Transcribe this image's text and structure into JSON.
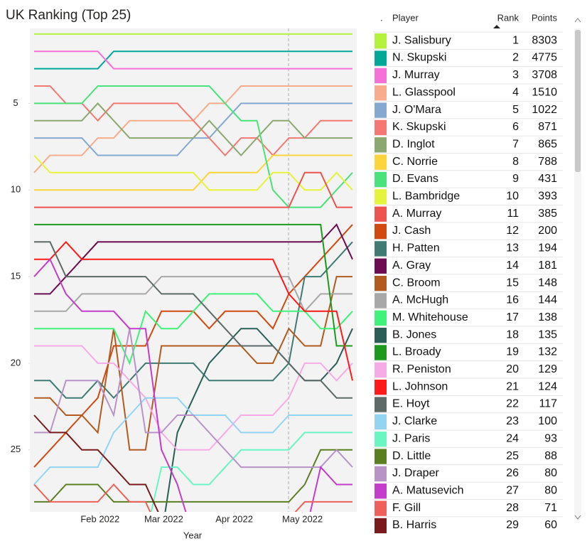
{
  "chart_data": {
    "type": "line",
    "title": "UK Ranking (Top 25)",
    "x_label": "Year",
    "x": [
      "2022-01-03",
      "2022-01-10",
      "2022-01-17",
      "2022-01-24",
      "2022-01-31",
      "2022-02-07",
      "2022-02-14",
      "2022-02-21",
      "2022-02-28",
      "2022-03-07",
      "2022-03-14",
      "2022-03-21",
      "2022-03-28",
      "2022-04-04",
      "2022-04-11",
      "2022-04-18",
      "2022-04-25",
      "2022-05-02",
      "2022-05-09",
      "2022-05-16",
      "2022-05-23"
    ],
    "xlim": [
      "2022-01-03",
      "2022-05-23"
    ],
    "xticks": [
      {
        "value": "2022-02-01",
        "label": "Feb 2022"
      },
      {
        "value": "2022-03-01",
        "label": "Mar 2022"
      },
      {
        "value": "2022-04-01",
        "label": "Apr 2022"
      },
      {
        "value": "2022-05-01",
        "label": "May 2022"
      }
    ],
    "ylim": [
      0.8,
      28.6
    ],
    "y_inverted": true,
    "yticks": [
      5,
      10,
      15,
      20,
      25
    ],
    "series": [
      {
        "name": "J. Salisbury",
        "color": "#b5f23c",
        "values": [
          1,
          1,
          1,
          1,
          1,
          1,
          1,
          1,
          1,
          1,
          1,
          1,
          1,
          1,
          1,
          1,
          1,
          1,
          1,
          1,
          1
        ]
      },
      {
        "name": "N. Skupski",
        "color": "#01a89a",
        "values": [
          3,
          3,
          3,
          3,
          3,
          2,
          2,
          2,
          2,
          2,
          2,
          2,
          2,
          2,
          2,
          2,
          2,
          2,
          2,
          2,
          2
        ]
      },
      {
        "name": "J. Murray",
        "color": "#f570d8",
        "values": [
          2,
          2,
          2,
          2,
          2,
          3,
          3,
          3,
          3,
          3,
          3,
          3,
          3,
          3,
          3,
          3,
          3,
          3,
          3,
          3,
          3
        ]
      },
      {
        "name": "L. Glasspool",
        "color": "#f8ac8c",
        "values": [
          9,
          8,
          8,
          8,
          7,
          7,
          6,
          6,
          6,
          6,
          6,
          5,
          5,
          4,
          4,
          4,
          4,
          4,
          4,
          4,
          4
        ]
      },
      {
        "name": "J. O'Mara",
        "color": "#85a8d0",
        "values": [
          7,
          7,
          7,
          7,
          8,
          8,
          8,
          8,
          8,
          8,
          7,
          7,
          6,
          5,
          5,
          5,
          5,
          5,
          5,
          5,
          5
        ]
      },
      {
        "name": "K. Skupski",
        "color": "#f57873",
        "values": [
          4,
          4,
          5,
          5,
          6,
          5,
          5,
          5,
          5,
          5,
          6,
          7,
          8,
          7,
          7,
          8,
          7,
          7,
          6,
          6,
          6
        ]
      },
      {
        "name": "D. Inglot",
        "color": "#8ca870",
        "values": [
          6,
          6,
          6,
          6,
          5,
          6,
          7,
          7,
          7,
          7,
          7,
          6,
          7,
          8,
          7,
          6,
          6,
          7,
          7,
          7,
          7
        ]
      },
      {
        "name": "C. Norrie",
        "color": "#fdd43b",
        "values": [
          10,
          10,
          10,
          10,
          10,
          10,
          10,
          10,
          10,
          10,
          10,
          9,
          9,
          9,
          9,
          8,
          8,
          8,
          8,
          8,
          8
        ]
      },
      {
        "name": "D. Evans",
        "color": "#4ae27b",
        "values": [
          5,
          5,
          5,
          5,
          4,
          4,
          4,
          4,
          4,
          4,
          4,
          4,
          5,
          6,
          6,
          10,
          11,
          11,
          11,
          10,
          9
        ]
      },
      {
        "name": "L. Bambridge",
        "color": "#e6f33c",
        "values": [
          8,
          9,
          9,
          9,
          9,
          9,
          9,
          9,
          9,
          9,
          9,
          10,
          10,
          10,
          10,
          9,
          9,
          10,
          10,
          9,
          10
        ]
      },
      {
        "name": "A. Murray",
        "color": "#ef5350",
        "values": [
          11,
          11,
          11,
          11,
          11,
          11,
          11,
          11,
          11,
          11,
          11,
          11,
          11,
          11,
          11,
          11,
          11,
          9,
          9,
          11,
          11
        ]
      },
      {
        "name": "J. Cash",
        "color": "#d24a12",
        "values": [
          26,
          25,
          24,
          23,
          22,
          19,
          19,
          19,
          17,
          17,
          17,
          18,
          17,
          17,
          17,
          18,
          16,
          15,
          14,
          13,
          12
        ]
      },
      {
        "name": "H. Patten",
        "color": "#3f7b73",
        "values": [
          21,
          21,
          22,
          22,
          21,
          22,
          21,
          20,
          20,
          20,
          20,
          21,
          21,
          21,
          21,
          21,
          20,
          15,
          15,
          14,
          13
        ]
      },
      {
        "name": "A. Gray",
        "color": "#6e0c52",
        "values": [
          16,
          16,
          15,
          14,
          13,
          13,
          13,
          13,
          13,
          13,
          13,
          13,
          13,
          13,
          13,
          13,
          13,
          13,
          13,
          12,
          14
        ]
      },
      {
        "name": "C. Broom",
        "color": "#b35a1f",
        "values": [
          22,
          22,
          23,
          23,
          24,
          18,
          25,
          25,
          19,
          19,
          19,
          19,
          19,
          19,
          20,
          20,
          18,
          19,
          19,
          15,
          15
        ]
      },
      {
        "name": "A. McHugh",
        "color": "#a8a8a8",
        "values": [
          17,
          17,
          17,
          16,
          16,
          16,
          16,
          16,
          15,
          15,
          15,
          15,
          15,
          15,
          15,
          15,
          15,
          17,
          16,
          16,
          16
        ]
      },
      {
        "name": "M. Whitehouse",
        "color": "#3ff27a",
        "values": [
          18,
          18,
          18,
          18,
          18,
          18,
          20,
          17,
          18,
          18,
          17,
          16,
          16,
          16,
          16,
          17,
          17,
          17,
          18,
          18,
          17
        ]
      },
      {
        "name": "B. Jones",
        "color": "#2a5e57",
        "values": [
          30,
          30,
          30,
          30,
          30,
          30,
          30,
          30,
          30,
          24,
          22,
          20,
          19,
          18,
          18,
          19,
          20,
          21,
          21,
          20,
          18
        ]
      },
      {
        "name": "L. Broady",
        "color": "#1d9a1d",
        "values": [
          12,
          12,
          12,
          12,
          12,
          12,
          12,
          12,
          12,
          12,
          12,
          12,
          12,
          12,
          12,
          12,
          12,
          12,
          12,
          19,
          19
        ]
      },
      {
        "name": "R. Peniston",
        "color": "#f7abe6",
        "values": [
          19,
          19,
          19,
          19,
          20,
          20,
          21,
          22,
          24,
          25,
          25,
          25,
          24,
          23,
          23,
          23,
          22,
          20,
          20,
          21,
          20
        ]
      },
      {
        "name": "L. Johnson",
        "color": "#ff1a1a",
        "values": [
          14,
          14,
          13,
          14,
          14,
          14,
          14,
          14,
          14,
          14,
          14,
          14,
          14,
          14,
          14,
          14,
          16,
          17,
          17,
          17,
          21
        ]
      },
      {
        "name": "E. Hoyt",
        "color": "#5e6a68",
        "values": [
          13,
          13,
          15,
          15,
          15,
          15,
          15,
          15,
          16,
          16,
          16,
          17,
          18,
          19,
          19,
          19,
          20,
          21,
          21,
          22,
          22
        ]
      },
      {
        "name": "J. Clarke",
        "color": "#94d4f3",
        "values": [
          27,
          26,
          26,
          26,
          26,
          24,
          23,
          22,
          22,
          22,
          23,
          23,
          23,
          24,
          24,
          24,
          23,
          23,
          23,
          23,
          23
        ]
      },
      {
        "name": "J. Paris",
        "color": "#6af5c2",
        "values": [
          30,
          30,
          30,
          30,
          30,
          30,
          30,
          30,
          26,
          26,
          27,
          27,
          26,
          25,
          25,
          25,
          25,
          24,
          24,
          24,
          24
        ]
      },
      {
        "name": "D. Little",
        "color": "#5a7f20",
        "values": [
          28,
          28,
          27,
          27,
          27,
          28,
          28,
          28,
          28,
          28,
          28,
          28,
          28,
          28,
          28,
          28,
          28,
          27,
          25,
          25,
          25
        ]
      },
      {
        "name": "J. Draper",
        "color": "#b893c8",
        "values": [
          24,
          24,
          21,
          21,
          21,
          23,
          18,
          24,
          24,
          23,
          23,
          24,
          25,
          26,
          26,
          26,
          26,
          26,
          26,
          25,
          26
        ]
      },
      {
        "name": "A. Matusevich",
        "color": "#c43ccc",
        "values": [
          15,
          14,
          16,
          17,
          17,
          17,
          18,
          18,
          25,
          27,
          30,
          30,
          30,
          30,
          30,
          30,
          30,
          30,
          26,
          27,
          27
        ]
      },
      {
        "name": "F. Gill",
        "color": "#f0605a",
        "values": [
          27,
          28,
          28,
          28,
          28,
          27,
          28,
          28,
          30,
          30,
          30,
          30,
          30,
          30,
          30,
          30,
          29,
          28,
          28,
          28,
          28
        ]
      },
      {
        "name": "B. Harris",
        "color": "#7a1a1c",
        "values": [
          23,
          24,
          24,
          25,
          25,
          26,
          27,
          27,
          29,
          30,
          30,
          30,
          30,
          30,
          30,
          30,
          30,
          30,
          30,
          30,
          30
        ]
      }
    ]
  },
  "table": {
    "columns": [
      ".",
      "Player",
      "Rank",
      "Points"
    ],
    "rows": [
      [
        1,
        8303
      ],
      [
        2,
        4775
      ],
      [
        3,
        3708
      ],
      [
        4,
        1510
      ],
      [
        5,
        1022
      ],
      [
        6,
        871
      ],
      [
        7,
        865
      ],
      [
        8,
        788
      ],
      [
        9,
        431
      ],
      [
        10,
        393
      ],
      [
        11,
        385
      ],
      [
        12,
        200
      ],
      [
        13,
        194
      ],
      [
        14,
        181
      ],
      [
        15,
        148
      ],
      [
        16,
        144
      ],
      [
        17,
        138
      ],
      [
        18,
        135
      ],
      [
        19,
        132
      ],
      [
        20,
        129
      ],
      [
        21,
        124
      ],
      [
        22,
        117
      ],
      [
        23,
        100
      ],
      [
        24,
        93
      ],
      [
        25,
        88
      ],
      [
        26,
        80
      ],
      [
        27,
        80
      ],
      [
        28,
        71
      ],
      [
        29,
        60
      ]
    ]
  }
}
